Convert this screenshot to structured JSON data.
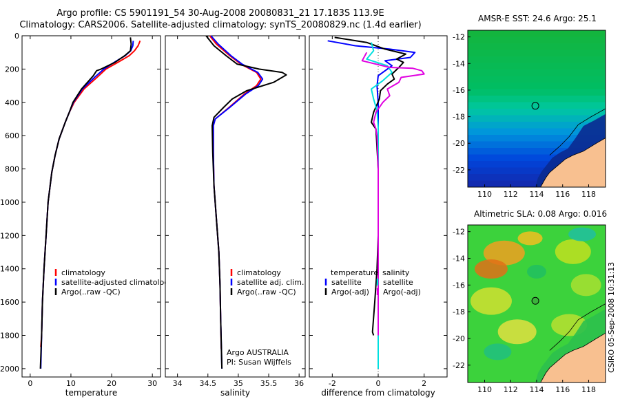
{
  "header": {
    "line1": "Argo profile: CS 5901191_54 30-Aug-2008 20080831_21 17.183S 113.9E",
    "line2": "Climatology: CARS2006. Satellite-adjusted climatology: synTS_20080829.nc (1.4d earlier)"
  },
  "colors": {
    "climatology": "#ff0000",
    "satellite": "#0000ff",
    "argo": "#000000",
    "sat_diff": "#00e0e0",
    "adj_diff": "#e000e0",
    "land": "#f8c090"
  },
  "chart_data": [
    {
      "type": "line",
      "xlabel": "temperature",
      "ylim": [
        2050,
        0
      ],
      "xlim": [
        -2,
        32
      ],
      "xticks": [
        0,
        10,
        20,
        30
      ],
      "yticks": [
        0,
        200,
        400,
        600,
        800,
        1000,
        1200,
        1400,
        1600,
        1800,
        2000
      ],
      "legend": [
        "climatology",
        "satellite-adjusted climatology",
        "Argo(..raw -QC)"
      ],
      "series": [
        {
          "name": "climatology",
          "color": "#ff0000",
          "points": [
            [
              27,
              30
            ],
            [
              26.5,
              60
            ],
            [
              25.6,
              90
            ],
            [
              24.3,
              120
            ],
            [
              21.5,
              160
            ],
            [
              18.6,
              200
            ],
            [
              16.4,
              250
            ],
            [
              13.2,
              320
            ],
            [
              10.8,
              400
            ],
            [
              9.6,
              460
            ],
            [
              8.6,
              520
            ],
            [
              7.1,
              620
            ],
            [
              6.1,
              720
            ],
            [
              5.3,
              820
            ],
            [
              4.4,
              1000
            ],
            [
              3.9,
              1200
            ],
            [
              3.4,
              1400
            ],
            [
              3.0,
              1600
            ],
            [
              2.8,
              1800
            ],
            [
              2.6,
              1870
            ]
          ]
        },
        {
          "name": "satellite-adjusted climatology",
          "color": "#0000ff",
          "points": [
            [
              25.3,
              30
            ],
            [
              25.2,
              60
            ],
            [
              24.7,
              90
            ],
            [
              23.3,
              120
            ],
            [
              20.6,
              160
            ],
            [
              18.1,
              200
            ],
            [
              15.8,
              250
            ],
            [
              12.8,
              320
            ],
            [
              10.6,
              400
            ],
            [
              9.6,
              460
            ],
            [
              8.6,
              520
            ],
            [
              7.1,
              620
            ],
            [
              6.1,
              720
            ],
            [
              5.3,
              820
            ],
            [
              4.4,
              1000
            ],
            [
              3.9,
              1200
            ],
            [
              3.4,
              1400
            ],
            [
              3.0,
              1600
            ],
            [
              2.8,
              1800
            ],
            [
              2.6,
              2000
            ]
          ]
        },
        {
          "name": "Argo(..raw -QC)",
          "color": "#000000",
          "points": [
            [
              24.6,
              10
            ],
            [
              24.8,
              50
            ],
            [
              24.6,
              90
            ],
            [
              23.2,
              120
            ],
            [
              20.8,
              160
            ],
            [
              17.4,
              200
            ],
            [
              16.3,
              210
            ],
            [
              15.5,
              240
            ],
            [
              12.6,
              320
            ],
            [
              10.5,
              400
            ],
            [
              9.6,
              460
            ],
            [
              8.6,
              520
            ],
            [
              7.1,
              620
            ],
            [
              6.1,
              720
            ],
            [
              5.3,
              820
            ],
            [
              4.4,
              1000
            ],
            [
              3.9,
              1200
            ],
            [
              3.4,
              1400
            ],
            [
              3.0,
              1600
            ],
            [
              2.8,
              1800
            ],
            [
              2.5,
              2000
            ]
          ]
        }
      ]
    },
    {
      "type": "line",
      "xlabel": "salinity",
      "ylim": [
        2050,
        0
      ],
      "xlim": [
        33.8,
        36.1
      ],
      "xticks": [
        34,
        34.5,
        35,
        35.5,
        36
      ],
      "legend": [
        "climatology",
        "satellite adj. clim.",
        "Argo(..raw -QC)"
      ],
      "annotations": [
        "Argo AUSTRALIA",
        "PI: Susan Wijffels"
      ],
      "series": [
        {
          "name": "climatology",
          "color": "#ff0000",
          "points": [
            [
              34.53,
              0
            ],
            [
              34.64,
              50
            ],
            [
              34.86,
              120
            ],
            [
              35.04,
              170
            ],
            [
              35.3,
              220
            ],
            [
              35.37,
              260
            ],
            [
              35.3,
              300
            ],
            [
              35.1,
              350
            ],
            [
              34.85,
              430
            ],
            [
              34.62,
              500
            ],
            [
              34.59,
              540
            ],
            [
              34.59,
              700
            ],
            [
              34.6,
              900
            ],
            [
              34.64,
              1100
            ],
            [
              34.68,
              1300
            ],
            [
              34.7,
              1500
            ],
            [
              34.71,
              1700
            ],
            [
              34.72,
              1880
            ]
          ]
        },
        {
          "name": "satellite adj. clim.",
          "color": "#0000ff",
          "points": [
            [
              34.55,
              0
            ],
            [
              34.67,
              50
            ],
            [
              34.88,
              120
            ],
            [
              35.06,
              170
            ],
            [
              35.32,
              220
            ],
            [
              35.4,
              260
            ],
            [
              35.33,
              300
            ],
            [
              35.12,
              350
            ],
            [
              34.86,
              430
            ],
            [
              34.62,
              500
            ],
            [
              34.59,
              540
            ],
            [
              34.59,
              700
            ],
            [
              34.6,
              900
            ],
            [
              34.64,
              1100
            ],
            [
              34.68,
              1300
            ],
            [
              34.7,
              1500
            ],
            [
              34.71,
              1700
            ],
            [
              34.73,
              2000
            ]
          ]
        },
        {
          "name": "Argo(..raw -QC)",
          "color": "#000000",
          "points": [
            [
              34.47,
              0
            ],
            [
              34.6,
              60
            ],
            [
              34.8,
              120
            ],
            [
              34.98,
              170
            ],
            [
              35.34,
              200
            ],
            [
              35.72,
              220
            ],
            [
              35.79,
              235
            ],
            [
              35.58,
              280
            ],
            [
              35.14,
              330
            ],
            [
              34.9,
              380
            ],
            [
              34.76,
              430
            ],
            [
              34.6,
              490
            ],
            [
              34.57,
              540
            ],
            [
              34.58,
              700
            ],
            [
              34.6,
              900
            ],
            [
              34.64,
              1100
            ],
            [
              34.68,
              1300
            ],
            [
              34.7,
              1500
            ],
            [
              34.71,
              1700
            ],
            [
              34.73,
              2000
            ]
          ]
        }
      ]
    },
    {
      "type": "line",
      "xlabel": "difference from climatology",
      "ylim": [
        2050,
        0
      ],
      "xlim": [
        -3,
        3
      ],
      "xticks": [
        -2,
        0,
        2
      ],
      "legend": [
        "temperature",
        "satellite",
        "Argo(-adj)",
        "salinity",
        "satellite",
        "Argo(-adj)"
      ],
      "series": [
        {
          "name": "temperature satellite",
          "color": "#0000ff",
          "points": [
            [
              -2.2,
              30
            ],
            [
              -1.0,
              60
            ],
            [
              0.5,
              80
            ],
            [
              1.6,
              100
            ],
            [
              1.4,
              130
            ],
            [
              0.3,
              150
            ],
            [
              0.6,
              180
            ],
            [
              0,
              240
            ],
            [
              -0.05,
              300
            ],
            [
              0,
              400
            ],
            [
              0,
              600
            ],
            [
              0,
              800
            ],
            [
              0,
              1000
            ],
            [
              0,
              1200
            ],
            [
              0,
              1400
            ],
            [
              0,
              1600
            ],
            [
              0,
              1800
            ],
            [
              0,
              2000
            ]
          ]
        },
        {
          "name": "temperature Argo(-adj)",
          "color": "#000000",
          "points": [
            [
              -1.9,
              10
            ],
            [
              -0.5,
              40
            ],
            [
              0.3,
              80
            ],
            [
              1.2,
              110
            ],
            [
              0.8,
              140
            ],
            [
              1.1,
              160
            ],
            [
              0.9,
              190
            ],
            [
              0.6,
              230
            ],
            [
              0.7,
              260
            ],
            [
              0.4,
              290
            ],
            [
              0.1,
              330
            ],
            [
              0.05,
              380
            ],
            [
              -0.2,
              460
            ],
            [
              -0.3,
              520
            ],
            [
              -0.1,
              560
            ],
            [
              -0.08,
              600
            ],
            [
              0,
              800
            ],
            [
              0,
              1000
            ],
            [
              0,
              1200
            ],
            [
              -0.05,
              1400
            ],
            [
              -0.15,
              1600
            ],
            [
              -0.25,
              1780
            ],
            [
              -0.2,
              1800
            ]
          ]
        },
        {
          "name": "salinity satellite",
          "color": "#00e0e0",
          "points": [
            [
              -0.3,
              40
            ],
            [
              -0.2,
              90
            ],
            [
              -0.5,
              140
            ],
            [
              0.4,
              180
            ],
            [
              0.6,
              220
            ],
            [
              0.2,
              270
            ],
            [
              -0.3,
              320
            ],
            [
              -0.2,
              380
            ],
            [
              -0.05,
              450
            ],
            [
              0,
              550
            ],
            [
              0,
              700
            ],
            [
              0,
              900
            ],
            [
              0,
              1100
            ],
            [
              0,
              1300
            ],
            [
              0,
              1500
            ],
            [
              0,
              1700
            ],
            [
              0,
              2000
            ]
          ]
        },
        {
          "name": "salinity Argo(-adj)",
          "color": "#e000e0",
          "points": [
            [
              -0.5,
              100
            ],
            [
              -0.7,
              150
            ],
            [
              0.5,
              190
            ],
            [
              1.5,
              195
            ],
            [
              1.9,
              210
            ],
            [
              2.0,
              230
            ],
            [
              1.0,
              250
            ],
            [
              0.9,
              280
            ],
            [
              0.4,
              320
            ],
            [
              0.5,
              360
            ],
            [
              0.2,
              400
            ],
            [
              -0.1,
              460
            ],
            [
              -0.2,
              520
            ],
            [
              -0.1,
              560
            ],
            [
              -0.05,
              600
            ],
            [
              0,
              800
            ],
            [
              0,
              1000
            ],
            [
              0,
              1200
            ],
            [
              0,
              1400
            ],
            [
              0,
              1600
            ],
            [
              0,
              1800
            ]
          ]
        }
      ]
    }
  ],
  "maps": [
    {
      "title": "AMSR-E SST: 24.6 Argo: 25.1",
      "type": "sst",
      "xticks": [
        110,
        112,
        114,
        116,
        118
      ],
      "yticks": [
        -12,
        -14,
        -16,
        -18,
        -20,
        -22
      ],
      "xlim": [
        108.7,
        119.3
      ],
      "ylim": [
        -23.3,
        -11.5
      ],
      "argo_position": [
        113.9,
        -17.183
      ]
    },
    {
      "title": "Altimetric SLA: 0.08 Argo: 0.016",
      "type": "sla",
      "xticks": [
        110,
        112,
        114,
        116,
        118
      ],
      "yticks": [
        -12,
        -14,
        -16,
        -18,
        -20,
        -22
      ],
      "xlim": [
        108.7,
        119.3
      ],
      "ylim": [
        -23.3,
        -11.5
      ],
      "argo_position": [
        113.9,
        -17.183
      ]
    }
  ],
  "timestamp": "CSIRO 05-Sep-2008 10:31:13"
}
